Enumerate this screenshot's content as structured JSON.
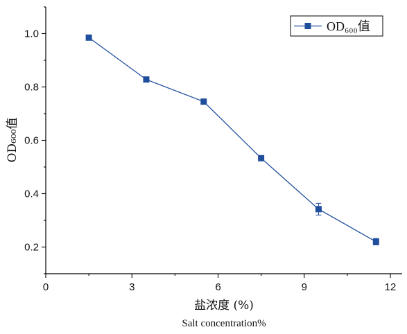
{
  "chart_data": {
    "type": "line",
    "title": "",
    "xlabel": "盐浓度 (%)",
    "xlabel_en": "Salt concentration%",
    "ylabel": "OD₆₀₀值",
    "xlim": [
      0,
      12
    ],
    "ylim": [
      0.1,
      1.1
    ],
    "x_ticks": [
      "0",
      "3",
      "6",
      "9",
      "12"
    ],
    "y_ticks": [
      "0.2",
      "0.4",
      "0.6",
      "0.8",
      "1.0"
    ],
    "grid": false,
    "legend_position": "top-right",
    "series": [
      {
        "name": "OD₆₀₀值",
        "color": "#1f4e9c",
        "marker": "square",
        "x": [
          1.5,
          3.5,
          5.5,
          7.5,
          9.5,
          11.5
        ],
        "y": [
          0.985,
          0.828,
          0.745,
          0.533,
          0.342,
          0.22
        ],
        "error": [
          0.0,
          0.0,
          0.0,
          0.0,
          0.022,
          0.012
        ]
      }
    ]
  }
}
